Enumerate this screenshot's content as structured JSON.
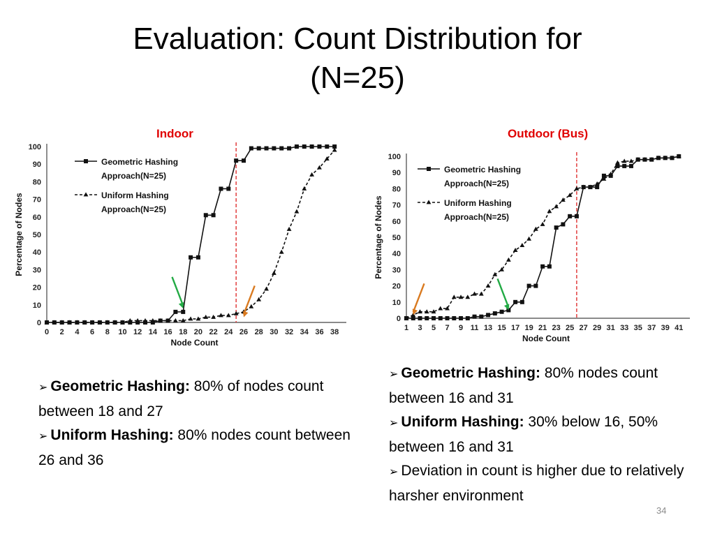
{
  "slide": {
    "title_line1": "Evaluation: Count Distribution for",
    "title_line2": "(N=25)",
    "page_number": "34"
  },
  "colors": {
    "label_red": "#e00000",
    "green_arrow": "#22aa44",
    "orange_arrow": "#d97a20",
    "cutoff_line": "#e03030"
  },
  "left_panel": {
    "label": "Indoor",
    "bullets": [
      {
        "bold": "Geometric Hashing:",
        "text": " 80% of nodes count between 18 and 27"
      },
      {
        "bold": "Uniform Hashing:",
        "text": " 80% nodes count between 26 and 36"
      }
    ]
  },
  "right_panel": {
    "label": "Outdoor (Bus)",
    "bullets": [
      {
        "bold": "Geometric Hashing:",
        "text": " 80% nodes count between 16 and 31"
      },
      {
        "bold": "Uniform Hashing:",
        "text": " 30% below 16, 50% between 16 and 31"
      },
      {
        "bold": "",
        "text": "Deviation in count is higher due to relatively harsher environment"
      }
    ]
  },
  "chart_data": [
    {
      "type": "line",
      "title": "Indoor",
      "xlabel": "Node Count",
      "ylabel": "Percentage of Nodes",
      "xlim": [
        0,
        39
      ],
      "ylim": [
        0,
        100
      ],
      "xticks": [
        0,
        2,
        4,
        6,
        8,
        10,
        12,
        14,
        16,
        18,
        20,
        22,
        24,
        26,
        28,
        30,
        32,
        34,
        36,
        38
      ],
      "yticks": [
        0,
        10,
        20,
        30,
        40,
        50,
        60,
        70,
        80,
        90,
        100
      ],
      "cutoff_x": 25,
      "legend_position": "top-left",
      "series": [
        {
          "name": "Geometric Hashing Approach(N=25)",
          "style": "solid-square",
          "x": [
            0,
            1,
            2,
            3,
            4,
            5,
            6,
            7,
            8,
            9,
            10,
            11,
            12,
            13,
            14,
            15,
            16,
            17,
            18,
            19,
            20,
            21,
            22,
            23,
            24,
            25,
            26,
            27,
            28,
            29,
            30,
            31,
            32,
            33,
            34,
            35,
            36,
            37,
            38
          ],
          "y": [
            0,
            0,
            0,
            0,
            0,
            0,
            0,
            0,
            0,
            0,
            0,
            0,
            0,
            0,
            0,
            1,
            1,
            6,
            6,
            37,
            37,
            61,
            61,
            76,
            76,
            92,
            92,
            99,
            99,
            99,
            99,
            99,
            99,
            100,
            100,
            100,
            100,
            100,
            100
          ]
        },
        {
          "name": "Uniform Hashing Approach(N=25)",
          "style": "dashed-triangle",
          "x": [
            0,
            1,
            2,
            3,
            4,
            5,
            6,
            7,
            8,
            9,
            10,
            11,
            12,
            13,
            14,
            15,
            16,
            17,
            18,
            19,
            20,
            21,
            22,
            23,
            24,
            25,
            26,
            27,
            28,
            29,
            30,
            31,
            32,
            33,
            34,
            35,
            36,
            37,
            38
          ],
          "y": [
            0,
            0,
            0,
            0,
            0,
            0,
            0,
            0,
            0,
            0,
            0,
            1,
            1,
            1,
            1,
            1,
            1,
            1,
            1,
            2,
            2,
            3,
            3,
            4,
            4,
            5,
            6,
            9,
            13,
            19,
            28,
            40,
            53,
            63,
            76,
            84,
            88,
            93,
            98
          ]
        }
      ],
      "arrows": [
        {
          "color": "green",
          "points_to_x": 18,
          "points_to_y": 8
        },
        {
          "color": "orange",
          "points_to_x": 26,
          "points_to_y": 3
        }
      ]
    },
    {
      "type": "line",
      "title": "Outdoor (Bus)",
      "xlabel": "Node Count",
      "ylabel": "Percentage of Nodes",
      "xlim": [
        1,
        42
      ],
      "ylim": [
        0,
        100
      ],
      "xticks": [
        1,
        3,
        5,
        7,
        9,
        11,
        13,
        15,
        17,
        19,
        21,
        23,
        25,
        27,
        29,
        31,
        33,
        35,
        37,
        39,
        41
      ],
      "yticks": [
        0,
        10,
        20,
        30,
        40,
        50,
        60,
        70,
        80,
        90,
        100
      ],
      "cutoff_x": 26,
      "legend_position": "top-left",
      "series": [
        {
          "name": "Geometric Hashing Approach(N=25)",
          "style": "solid-square",
          "x": [
            1,
            2,
            3,
            4,
            5,
            6,
            7,
            8,
            9,
            10,
            11,
            12,
            13,
            14,
            15,
            16,
            17,
            18,
            19,
            20,
            21,
            22,
            23,
            24,
            25,
            26,
            27,
            28,
            29,
            30,
            31,
            32,
            33,
            34,
            35,
            36,
            37,
            38,
            39,
            40,
            41
          ],
          "y": [
            0,
            0,
            0,
            0,
            0,
            0,
            0,
            0,
            0,
            0,
            1,
            1,
            2,
            3,
            4,
            5,
            10,
            10,
            20,
            20,
            32,
            32,
            56,
            58,
            63,
            63,
            81,
            81,
            81,
            88,
            88,
            94,
            94,
            94,
            98,
            98,
            98,
            99,
            99,
            99,
            100
          ]
        },
        {
          "name": "Uniform Hashing Approach(N=25)",
          "style": "dashed-triangle",
          "x": [
            1,
            2,
            3,
            4,
            5,
            6,
            7,
            8,
            9,
            10,
            11,
            12,
            13,
            14,
            15,
            16,
            17,
            18,
            19,
            20,
            21,
            22,
            23,
            24,
            25,
            26,
            27,
            28,
            29,
            30,
            31,
            32,
            33,
            34,
            35,
            36,
            37,
            38,
            39,
            40,
            41
          ],
          "y": [
            0,
            2,
            4,
            4,
            4,
            6,
            6,
            13,
            13,
            13,
            15,
            15,
            20,
            27,
            30,
            36,
            42,
            45,
            49,
            55,
            58,
            66,
            69,
            73,
            76,
            80,
            81,
            81,
            83,
            86,
            89,
            96,
            97,
            97,
            98,
            98,
            98,
            99,
            99,
            99,
            100
          ]
        }
      ],
      "arrows": [
        {
          "color": "orange",
          "points_to_x": 2,
          "points_to_y": 2
        },
        {
          "color": "green",
          "points_to_x": 16,
          "points_to_y": 5
        }
      ]
    }
  ]
}
